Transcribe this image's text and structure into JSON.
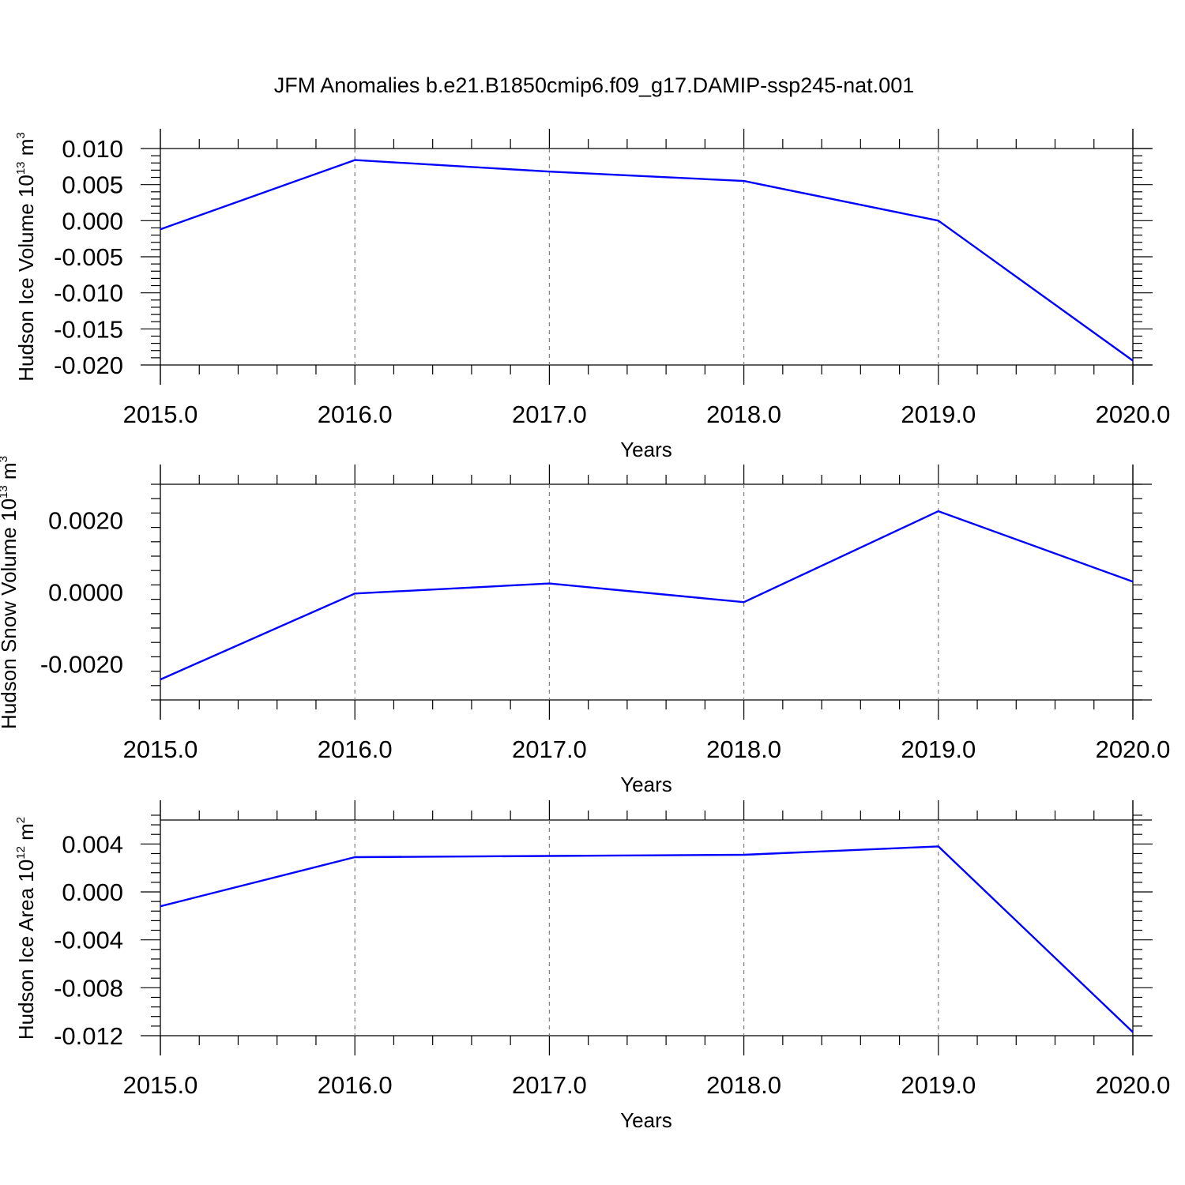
{
  "title": "JFM Anomalies b.e21.B1850cmip6.f09_g17.DAMIP-ssp245-nat.001",
  "colors": {
    "line": "#0000ff",
    "grid": "#808080",
    "axes": "#000000"
  },
  "chart_data": [
    {
      "type": "line",
      "xlabel": "Years",
      "ylabel": {
        "text": "Hudson Ice Volume 10",
        "sup": "13",
        "unit": " m",
        "unit_sup": "3"
      },
      "x": [
        2015,
        2016,
        2017,
        2018,
        2019,
        2020
      ],
      "values": [
        -0.0012,
        0.0084,
        0.0068,
        0.0055,
        0.0,
        -0.0194
      ],
      "xlim": [
        2015,
        2020
      ],
      "ylim": [
        -0.02,
        0.01
      ],
      "xticks": [
        2015,
        2016,
        2017,
        2018,
        2019,
        2020
      ],
      "xtick_labels": [
        "2015.0",
        "2016.0",
        "2017.0",
        "2018.0",
        "2019.0",
        "2020.0"
      ],
      "yticks": [
        -0.02,
        -0.015,
        -0.01,
        -0.005,
        0.0,
        0.005,
        0.01
      ],
      "ytick_labels": [
        "-0.020",
        "-0.015",
        "-0.010",
        "-0.005",
        "0.000",
        "0.005",
        "0.010"
      ],
      "grid": "vertical dashed at major x ticks"
    },
    {
      "type": "line",
      "xlabel": "Years",
      "ylabel": {
        "text": "Hudson Snow Volume 10",
        "sup": "13",
        "unit": " m",
        "unit_sup": "3"
      },
      "x": [
        2015,
        2016,
        2017,
        2018,
        2019,
        2020
      ],
      "values": [
        -0.00243,
        -4e-05,
        0.00024,
        -0.00028,
        0.00225,
        0.00029
      ],
      "xlim": [
        2015,
        2020
      ],
      "ylim": [
        -0.003,
        0.003
      ],
      "xticks": [
        2015,
        2016,
        2017,
        2018,
        2019,
        2020
      ],
      "xtick_labels": [
        "2015.0",
        "2016.0",
        "2017.0",
        "2018.0",
        "2019.0",
        "2020.0"
      ],
      "yticks": [
        -0.002,
        0.0,
        0.002
      ],
      "ytick_labels": [
        "-0.0020",
        "0.0000",
        "0.0020"
      ],
      "grid": "vertical dashed at major x ticks"
    },
    {
      "type": "line",
      "xlabel": "Years",
      "ylabel": {
        "text": "Hudson Ice Area 10",
        "sup": "12",
        "unit": " m",
        "unit_sup": "2"
      },
      "x": [
        2015,
        2016,
        2017,
        2018,
        2019,
        2020
      ],
      "values": [
        -0.0012,
        0.0029,
        0.003,
        0.0031,
        0.0038,
        -0.0117
      ],
      "xlim": [
        2015,
        2020
      ],
      "ylim": [
        -0.012,
        0.006
      ],
      "xticks": [
        2015,
        2016,
        2017,
        2018,
        2019,
        2020
      ],
      "xtick_labels": [
        "2015.0",
        "2016.0",
        "2017.0",
        "2018.0",
        "2019.0",
        "2020.0"
      ],
      "yticks": [
        -0.012,
        -0.008,
        -0.004,
        0.0,
        0.004
      ],
      "ytick_labels": [
        "-0.012",
        "-0.008",
        "-0.004",
        "0.000",
        "0.004"
      ],
      "grid": "vertical dashed at major x ticks"
    }
  ]
}
